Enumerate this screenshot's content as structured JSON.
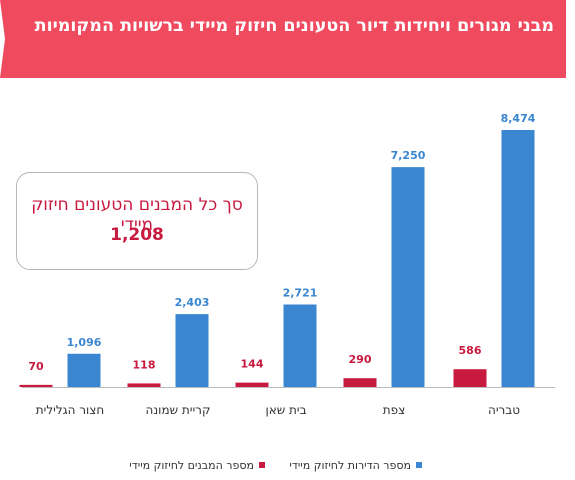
{
  "header": {
    "title": "מבני מגורים ויחידות דיור הטעונים חיזוק מיידי ברשויות המקומיות"
  },
  "callout": {
    "label": "סך כל המבנים הטעונים חיזוק מיידי",
    "value": "1,208"
  },
  "colors": {
    "banner": "#f04a5f",
    "buildings": "#c8193f",
    "units": "#3a86d1",
    "callout_text": "#c8193f"
  },
  "chart_data": {
    "type": "bar",
    "categories": [
      "טבריה",
      "צפת",
      "בית שאן",
      "קריית שמונה",
      "חצור הגלילית"
    ],
    "series": [
      {
        "name": "מספר המבנים לחיזוק מיידי",
        "color": "#c8193f",
        "values": [
          586,
          290,
          144,
          118,
          70
        ]
      },
      {
        "name": "מספר הדירות לחיזוק מיידי",
        "color": "#3a86d1",
        "values": [
          8474,
          7250,
          2721,
          2403,
          1096
        ]
      }
    ],
    "value_labels": {
      "buildings": [
        "586",
        "290",
        "144",
        "118",
        "70"
      ],
      "units": [
        "8,474",
        "7,250",
        "2,721",
        "2,403",
        "1,096"
      ]
    },
    "ylim": [
      0,
      8474
    ],
    "grid": false,
    "legend_position": "bottom"
  }
}
